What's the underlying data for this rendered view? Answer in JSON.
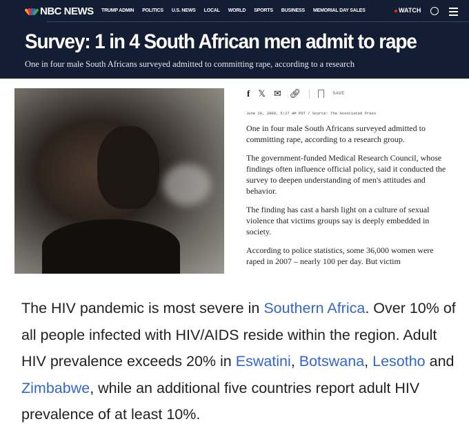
{
  "header": {
    "logo": "NBC NEWS",
    "nav": [
      "TRUMP ADMIN",
      "POLITICS",
      "U.S. NEWS",
      "LOCAL",
      "WORLD",
      "SPORTS",
      "BUSINESS",
      "MEMORIAL DAY SALES"
    ],
    "watch": "WATCH",
    "title": "Survey: 1 in 4 South African men admit to rape",
    "subtitle": "One in four male South Africans surveyed admitted to committing rape, according to a research"
  },
  "share": {
    "save": "SAVE",
    "icons": [
      "facebook-icon",
      "x-icon",
      "email-icon",
      "link-icon",
      "bookmark-icon"
    ]
  },
  "article": {
    "dateline": "June 20, 2009, 5:27 AM PDT / Source: The Associated Press",
    "paragraphs": [
      "One in four male South Africans surveyed admitted to committing rape, according to a research group.",
      "The government-funded Medical Research Council, whose findings often influence official policy, said it conducted the survey to deepen understanding of men's attitudes and behavior.",
      "The finding has cast a harsh light on a culture of sexual violence that victims groups say is deeply embedded in society.",
      "According to police statistics, some 36,000 women were raped in 2007 – nearly 100 per day. But victim"
    ]
  },
  "wiki": {
    "t1": "The HIV pandemic is most severe in ",
    "l1": "Southern Africa",
    "t2": ". Over 10% of all people infected with HIV/AIDS reside within the region. Adult HIV prevalence exceeds 20% in ",
    "l2": "Eswatini",
    "t3": ", ",
    "l3": "Botswana",
    "t4": ", ",
    "l4": "Lesotho",
    "t5": " and ",
    "l5": "Zimbabwe",
    "t6": ", while an additional five countries report adult HIV prevalence of at least 10%."
  },
  "colors": {
    "header_bg": "#131d33",
    "link": "#3366cc",
    "watch_dot": "#e0303a"
  }
}
